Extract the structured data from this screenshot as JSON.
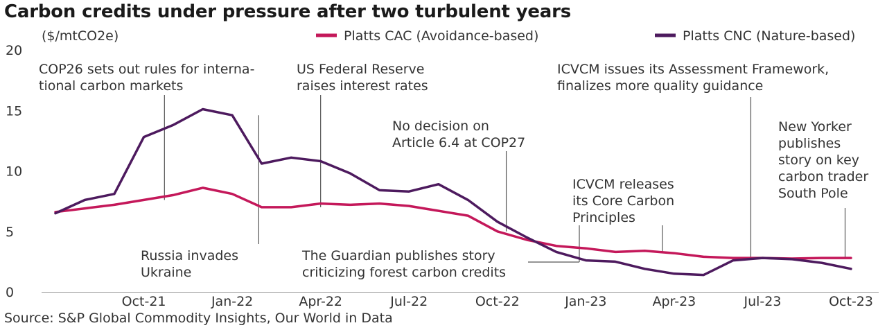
{
  "title": "Carbon credits under pressure after two turbulent years",
  "source": "Source: S&P Global Commodity Insights, Our World in Data",
  "colors": {
    "cac": "#c4185a",
    "cnc": "#4d1a5e",
    "annotation": "#555555",
    "baseline": "#999999"
  },
  "chart_data": {
    "type": "line",
    "title": "Carbon credits under pressure after two turbulent years",
    "ylabel": "($/mtCO2e)",
    "xlabel": "",
    "ylim": [
      0,
      20
    ],
    "yticks": [
      "0",
      "5",
      "10",
      "15",
      "20"
    ],
    "xticks": [
      {
        "label": "Oct-21",
        "index": 3
      },
      {
        "label": "Jan-22",
        "index": 6
      },
      {
        "label": "Apr-22",
        "index": 9
      },
      {
        "label": "Jul-22",
        "index": 12
      },
      {
        "label": "Oct-22",
        "index": 15
      },
      {
        "label": "Jan-23",
        "index": 18
      },
      {
        "label": "Apr-23",
        "index": 21
      },
      {
        "label": "Jul-23",
        "index": 24
      },
      {
        "label": "Oct-23",
        "index": 27
      }
    ],
    "x": [
      "Jul-21",
      "Aug-21",
      "Sep-21",
      "Oct-21",
      "Nov-21",
      "Dec-21",
      "Jan-22",
      "Feb-22",
      "Mar-22",
      "Apr-22",
      "May-22",
      "Jun-22",
      "Jul-22",
      "Aug-22",
      "Sep-22",
      "Oct-22",
      "Nov-22",
      "Dec-22",
      "Jan-23",
      "Feb-23",
      "Mar-23",
      "Apr-23",
      "May-23",
      "Jun-23",
      "Jul-23",
      "Aug-23",
      "Sep-23",
      "Oct-23"
    ],
    "legend_position": "top",
    "series": [
      {
        "name": "Platts CAC (Avoidance-based)",
        "color": "#c4185a",
        "values": [
          6.6,
          6.9,
          7.2,
          7.6,
          8.0,
          8.6,
          8.1,
          7.0,
          7.0,
          7.3,
          7.2,
          7.3,
          7.1,
          6.7,
          6.3,
          5.0,
          4.3,
          3.8,
          3.6,
          3.3,
          3.4,
          3.2,
          2.9,
          2.8,
          2.8,
          2.75,
          2.8,
          2.8
        ]
      },
      {
        "name": "Platts CNC (Nature-based)",
        "color": "#4d1a5e",
        "values": [
          6.5,
          7.6,
          8.1,
          12.8,
          13.8,
          15.1,
          14.6,
          10.6,
          11.1,
          10.8,
          9.8,
          8.4,
          8.3,
          8.9,
          7.6,
          5.8,
          4.5,
          3.3,
          2.6,
          2.5,
          1.9,
          1.5,
          1.4,
          2.6,
          2.8,
          2.7,
          2.4,
          1.9
        ]
      }
    ],
    "annotations": [
      {
        "lines": [
          "COP26 sets out rules for interna-",
          "tional carbon markets"
        ],
        "x_index": 3.7,
        "y": 7.6
      },
      {
        "lines": [
          "Russia invades",
          "Ukraine"
        ],
        "x_index": 6.9,
        "y": 14.6
      },
      {
        "lines": [
          "US Federal Reserve",
          "raises interest rates"
        ],
        "x_index": 9.0,
        "y": 7.0
      },
      {
        "lines": [
          "No decision on",
          "Article 6.4 at COP27"
        ],
        "x_index": 15.3,
        "y": 5.0
      },
      {
        "lines": [
          "The Guardian publishes story",
          "criticizing forest carbon credits"
        ],
        "x_index": 17.7,
        "y": 3.4
      },
      {
        "lines": [
          "ICVCM releases",
          "its Core Carbon",
          "Principles"
        ],
        "x_index": 20.6,
        "y": 3.3
      },
      {
        "lines": [
          "ICVCM issues its Assessment Framework,",
          "finalizes more quality guidance"
        ],
        "x_index": 23.6,
        "y": 2.8
      },
      {
        "lines": [
          "New Yorker",
          "publishes",
          "story on key",
          "carbon trader",
          "South Pole"
        ],
        "x_index": 26.8,
        "y": 2.8
      }
    ]
  }
}
